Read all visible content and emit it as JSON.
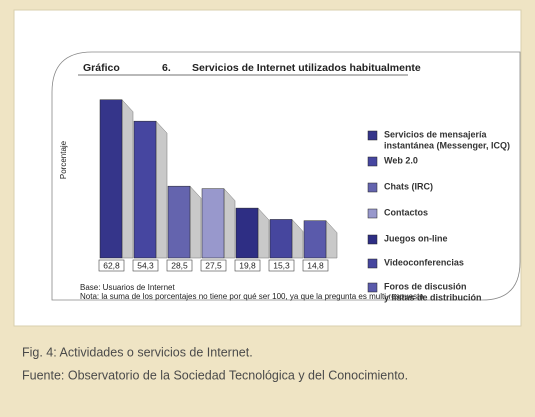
{
  "chart_data": {
    "type": "bar",
    "figure_label": "Gráfico",
    "figure_number": "6.",
    "title": "Servicios de Internet utilizados habitualmente",
    "y_label": "Porcentaje",
    "categories": [
      "Servicios de mensajería\ninstantánea (Messenger, ICQ)",
      "Web 2.0",
      "Chats (IRC)",
      "Contactos",
      "Juegos on-line",
      "Videoconferencias",
      "Foros de discusión\ny listas de distribución"
    ],
    "values": [
      62.8,
      54.3,
      28.5,
      27.5,
      19.8,
      15.3,
      14.8
    ],
    "value_labels": [
      "62,8",
      "54,3",
      "28,5",
      "27,5",
      "19,8",
      "15,3",
      "14,8"
    ],
    "colors": [
      "#35358a",
      "#4646a0",
      "#6464ae",
      "#9898cc",
      "#2e2e84",
      "#46469e",
      "#5a5aab"
    ],
    "notes": [
      "Base: Usuarios de Internet",
      "Nota: la suma de los porcentajes no tiene por qué ser 100, ya que la pregunta es multi-respuesta"
    ]
  },
  "caption": [
    "Fig. 4: Actividades o servicios de Internet.",
    "Fuente: Observatorio de la Sociedad Tecnológica y del Conocimiento."
  ]
}
